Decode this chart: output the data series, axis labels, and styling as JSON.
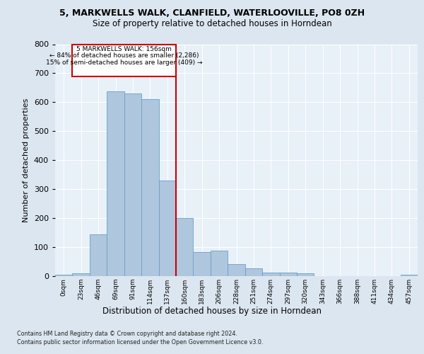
{
  "title1": "5, MARKWELLS WALK, CLANFIELD, WATERLOOVILLE, PO8 0ZH",
  "title2": "Size of property relative to detached houses in Horndean",
  "xlabel": "Distribution of detached houses by size in Horndean",
  "ylabel": "Number of detached properties",
  "categories": [
    "0sqm",
    "23sqm",
    "46sqm",
    "69sqm",
    "91sqm",
    "114sqm",
    "137sqm",
    "160sqm",
    "183sqm",
    "206sqm",
    "228sqm",
    "251sqm",
    "274sqm",
    "297sqm",
    "320sqm",
    "343sqm",
    "366sqm",
    "388sqm",
    "411sqm",
    "434sqm",
    "457sqm"
  ],
  "bar_heights": [
    5,
    10,
    143,
    638,
    631,
    610,
    330,
    200,
    84,
    87,
    42,
    26,
    12,
    13,
    10,
    0,
    0,
    0,
    0,
    0,
    5
  ],
  "bar_color": "#aec6de",
  "bar_edge_color": "#6aa0c7",
  "annotation_text_line1": "5 MARKWELLS WALK: 156sqm",
  "annotation_text_line2": "← 84% of detached houses are smaller (2,286)",
  "annotation_text_line3": "15% of semi-detached houses are larger (409) →",
  "vline_color": "#cc0000",
  "box_edge_color": "#cc0000",
  "footer_line1": "Contains HM Land Registry data © Crown copyright and database right 2024.",
  "footer_line2": "Contains public sector information licensed under the Open Government Licence v3.0.",
  "ylim": [
    0,
    800
  ],
  "background_color": "#dce6f0",
  "plot_bg_color": "#e8f0f8"
}
